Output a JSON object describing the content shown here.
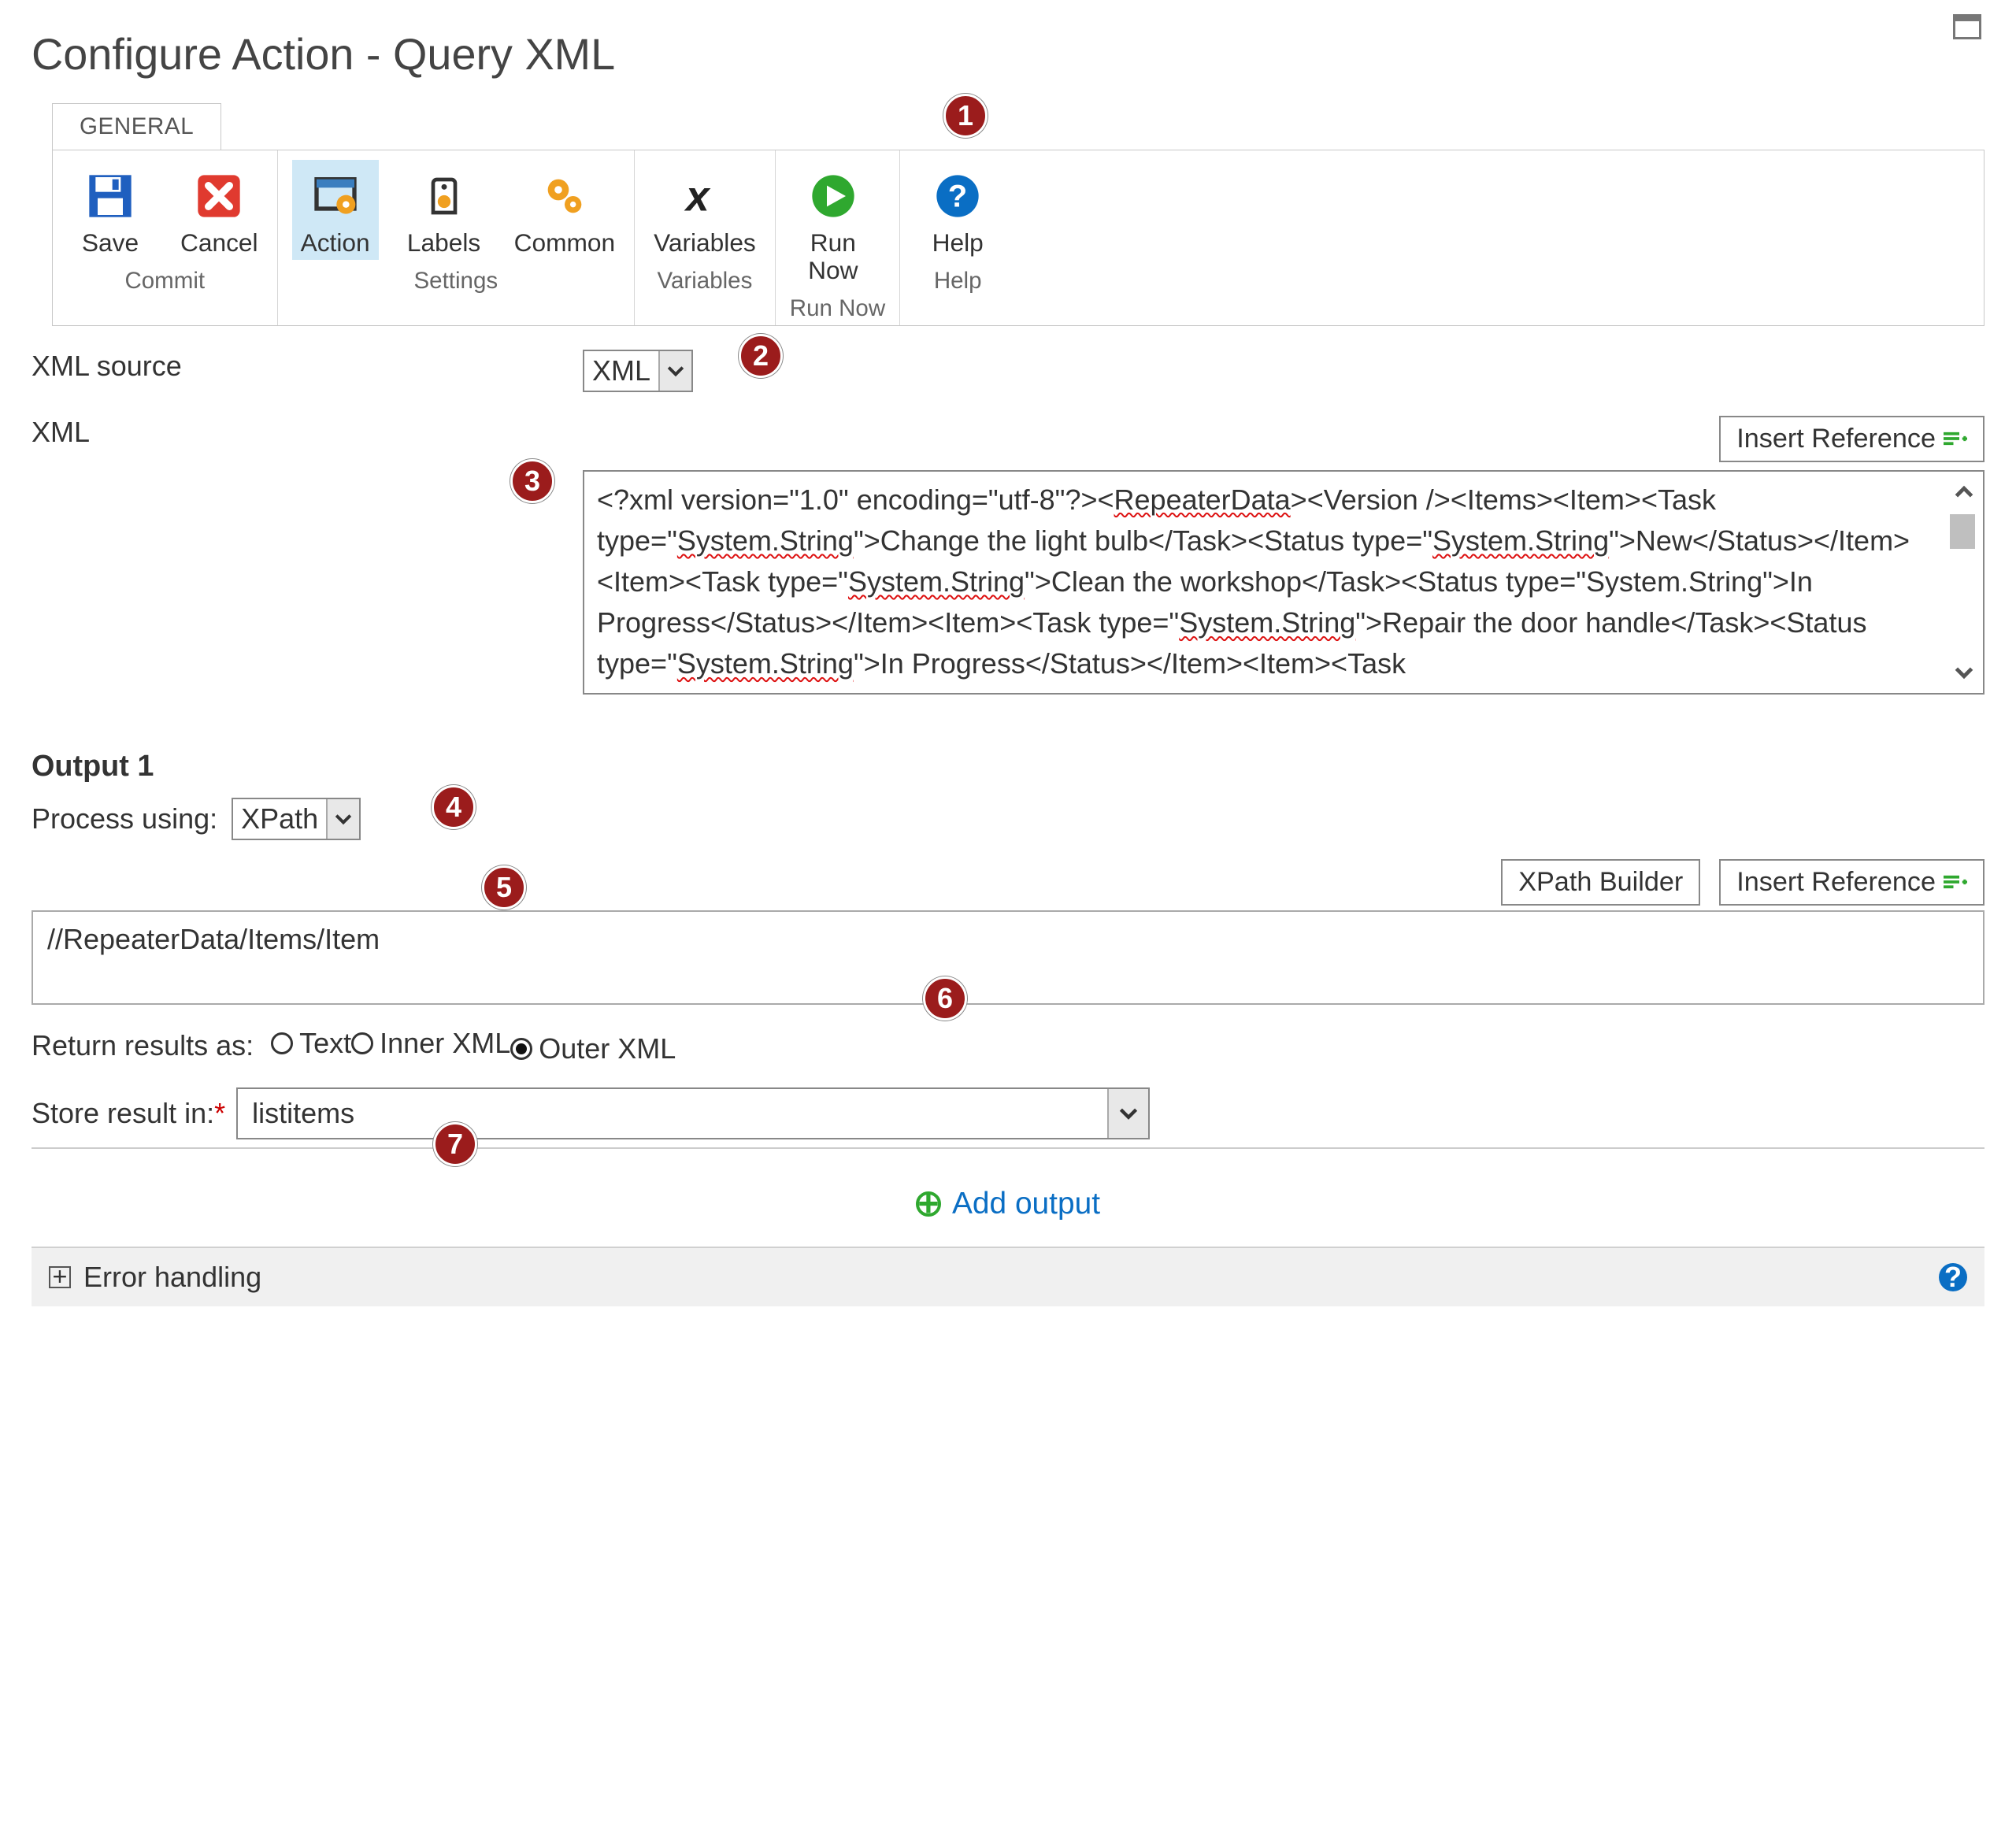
{
  "title": "Configure Action - Query XML",
  "ribbon": {
    "tab": "GENERAL",
    "groups": [
      {
        "name": "commit",
        "label": "Commit",
        "buttons": [
          {
            "id": "save",
            "label": "Save"
          },
          {
            "id": "cancel",
            "label": "Cancel"
          }
        ]
      },
      {
        "name": "settings",
        "label": "Settings",
        "buttons": [
          {
            "id": "action",
            "label": "Action",
            "selected": true
          },
          {
            "id": "labels",
            "label": "Labels"
          },
          {
            "id": "common",
            "label": "Common"
          }
        ]
      },
      {
        "name": "variables",
        "label": "Variables",
        "buttons": [
          {
            "id": "variables",
            "label": "Variables"
          }
        ]
      },
      {
        "name": "runnow",
        "label": "Run Now",
        "buttons": [
          {
            "id": "runnow",
            "label": "Run Now"
          }
        ]
      },
      {
        "name": "help",
        "label": "Help",
        "buttons": [
          {
            "id": "help",
            "label": "Help"
          }
        ]
      }
    ]
  },
  "form": {
    "xml_source_label": "XML source",
    "xml_source_value": "XML",
    "xml_label": "XML",
    "insert_reference_label": "Insert Reference",
    "xml_text_parts": [
      {
        "t": "<?xml version=\"1.0\" encoding=\"utf-8\"?"
      },
      {
        "t": "><",
        "s": false
      },
      {
        "t": "RepeaterData",
        "s": true
      },
      {
        "t": "><Version /><Items><Item><Task type=\"",
        "s": false
      },
      {
        "t": "System.String",
        "s": true
      },
      {
        "t": "\">Change the light bulb</Task><Status type=\"",
        "s": false
      },
      {
        "t": "System.String",
        "s": true
      },
      {
        "t": "\">New</Status></Item><Item><Task type=\"",
        "s": false
      },
      {
        "t": "System.String",
        "s": true
      },
      {
        "t": "\">Clean the workshop</Task><Status type=\"System.String\">In Progress</Status></Item><Item><Task type=\"",
        "s": false
      },
      {
        "t": "System.String",
        "s": true
      },
      {
        "t": "\">Repair the door handle</Task><Status type=\"",
        "s": false
      },
      {
        "t": "System.String",
        "s": true
      },
      {
        "t": "\">In Progress</Status></Item><Item><Task",
        "s": false
      }
    ],
    "output_section_title": "Output 1",
    "process_using_label": "Process using:",
    "process_using_value": "XPath",
    "xpath_builder_label": "XPath Builder",
    "xpath_value": "//RepeaterData/Items/Item",
    "return_results_label": "Return results as:",
    "return_results_options": [
      "Text",
      "Inner XML",
      "Outer XML"
    ],
    "return_results_selected": 2,
    "store_result_label": "Store result in:",
    "store_result_value": "listitems",
    "add_output_label": "Add output",
    "error_handling_label": "Error handling"
  },
  "callouts": [
    "1",
    "2",
    "3",
    "4",
    "5",
    "6",
    "7"
  ],
  "colors": {
    "accent_blue": "#0a6ec4",
    "save_blue": "#1f5fbf",
    "cancel_red": "#e03a2f",
    "run_green": "#2fa82f",
    "callout_bg": "#9b1c1c",
    "selected_bg": "#cfe8f6"
  }
}
